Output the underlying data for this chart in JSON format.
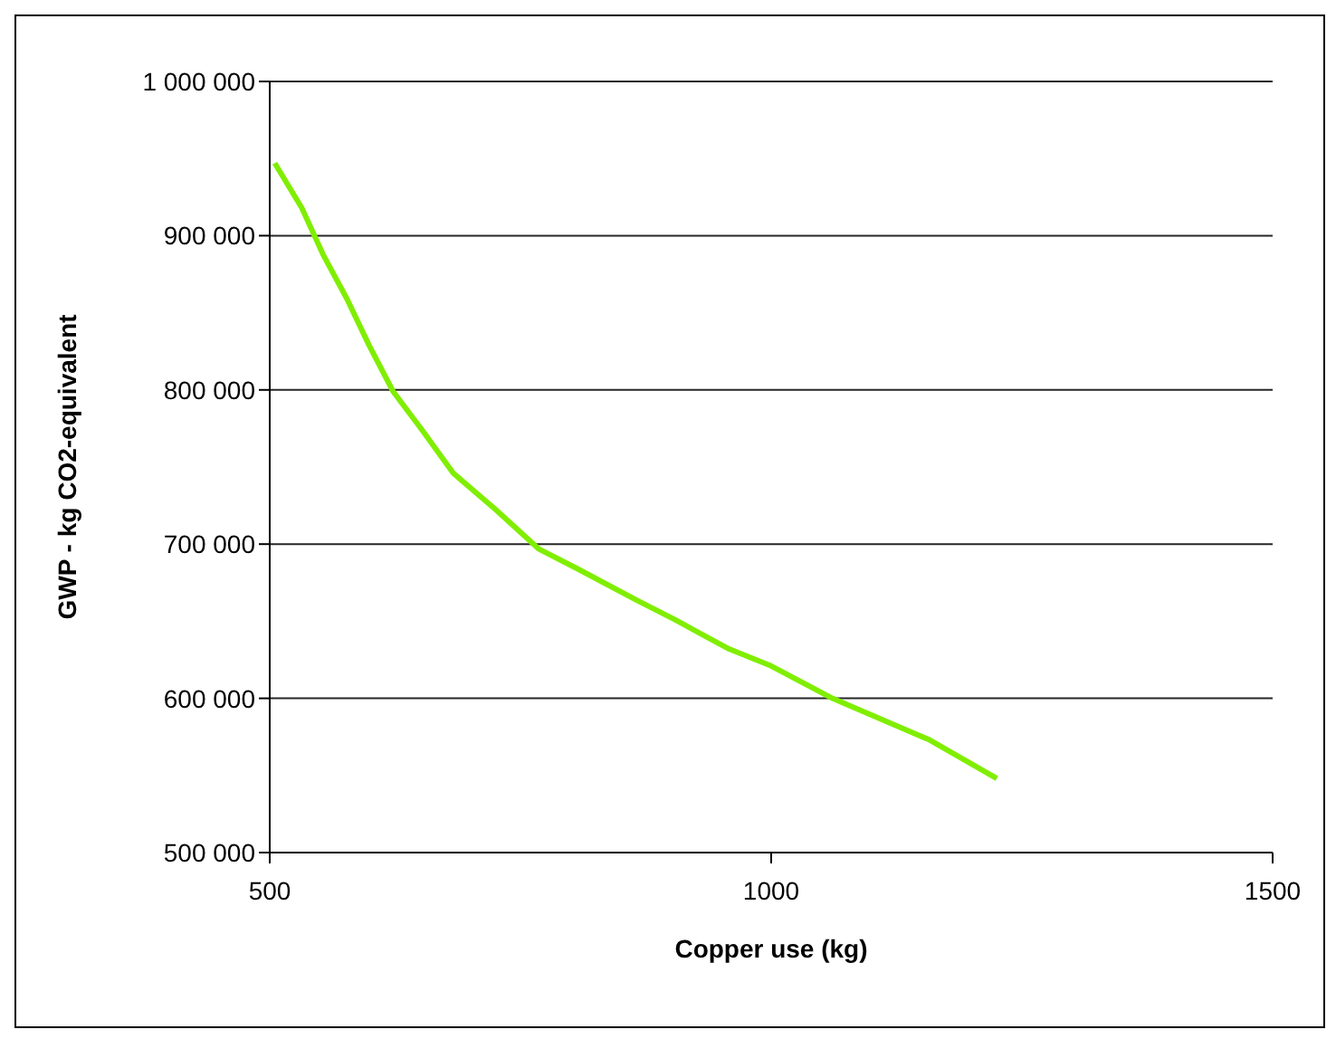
{
  "chart_data": {
    "type": "line",
    "xlabel": "Copper use (kg)",
    "ylabel": "GWP - kg CO2-equivalent",
    "series": [
      {
        "color": "#80ee00",
        "x": [
          505,
          532,
          553,
          577,
          599,
          623,
          653,
          683,
          726,
          768,
          807,
          865,
          904,
          958,
          1000,
          1061,
          1158,
          1225
        ],
        "values": [
          947000,
          918000,
          888000,
          859000,
          829000,
          799000,
          773000,
          746000,
          722000,
          697000,
          684000,
          664000,
          651000,
          632000,
          621000,
          600000,
          573000,
          548000
        ]
      }
    ],
    "xlim": [
      500,
      1500
    ],
    "xticks": [
      500,
      1000,
      1500
    ],
    "ylim": [
      500000,
      1000000
    ],
    "yticks": [
      {
        "value": 500000,
        "label": "500 000"
      },
      {
        "value": 600000,
        "label": "600 000"
      },
      {
        "value": 700000,
        "label": "700 000"
      },
      {
        "value": 800000,
        "label": "800 000"
      },
      {
        "value": 900000,
        "label": "900 000"
      },
      {
        "value": 1000000,
        "label": "1 000 000"
      }
    ],
    "grid": "y",
    "marker": "none",
    "line_style": "solid"
  }
}
